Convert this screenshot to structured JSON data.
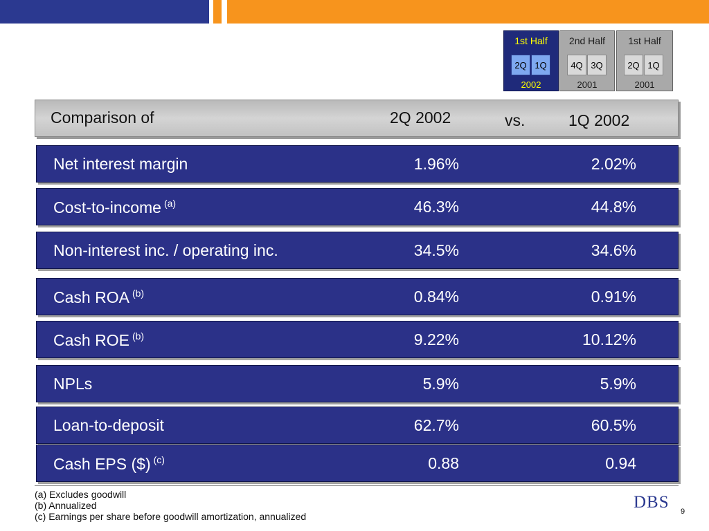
{
  "period_selector": [
    {
      "header": "1st Half",
      "quarters": [
        "2Q",
        "1Q"
      ],
      "year": "2002",
      "active": true
    },
    {
      "header": "2nd Half",
      "quarters": [
        "4Q",
        "3Q"
      ],
      "year": "2001",
      "active": false
    },
    {
      "header": "1st Half",
      "quarters": [
        "2Q",
        "1Q"
      ],
      "year": "2001",
      "active": false
    }
  ],
  "comparison": {
    "label": "Comparison of",
    "current": "2Q 2002",
    "vs": "vs.",
    "previous": "1Q 2002"
  },
  "metrics": [
    {
      "label": "Net interest margin",
      "note": "",
      "current": "1.96%",
      "previous": "2.02%"
    },
    {
      "label": "Cost-to-income",
      "note": "(a)",
      "current": "46.3%",
      "previous": "44.8%"
    },
    {
      "label": "Non-interest inc. / operating inc.",
      "note": "",
      "current": "34.5%",
      "previous": "34.6%"
    },
    {
      "label": "Cash ROA",
      "note": "(b)",
      "current": "0.84%",
      "previous": "0.91%"
    },
    {
      "label": "Cash ROE",
      "note": "(b)",
      "current": "9.22%",
      "previous": "10.12%"
    },
    {
      "label": "NPLs",
      "note": "",
      "current": "5.9%",
      "previous": "5.9%"
    },
    {
      "label": "Loan-to-deposit",
      "note": "",
      "current": "62.7%",
      "previous": "60.5%"
    },
    {
      "label": "Cash EPS ($)",
      "note": "(c)",
      "current": "0.88",
      "previous": "0.94"
    }
  ],
  "footnotes": [
    "(a) Excludes goodwill",
    "(b) Annualized",
    "(c) Earnings per share before goodwill amortization, annualized"
  ],
  "logo": "DBS",
  "page_number": "9",
  "colors": {
    "navy": "#2b3990",
    "row_blue": "#2b3188",
    "orange": "#f7941d",
    "active_text": "#ffff00"
  }
}
